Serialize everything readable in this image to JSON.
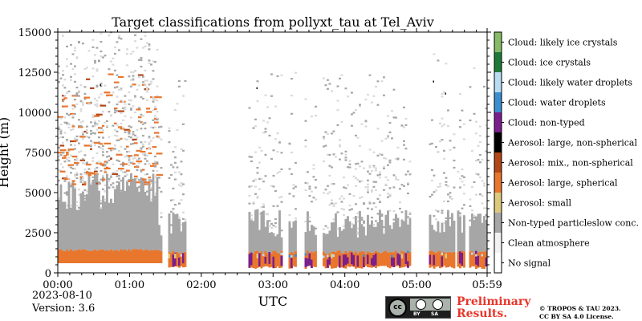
{
  "chart_data": {
    "type": "heatmap",
    "title": "Target classifications from pollyxt_tau at Tel_Aviv",
    "xlabel": "UTC",
    "ylabel": "Height (m)",
    "x_ticks": [
      "00:00",
      "01:00",
      "02:00",
      "03:00",
      "04:00",
      "05:00",
      "05:59"
    ],
    "x_range_hours": [
      0,
      5.983
    ],
    "y_ticks": [
      0,
      2500,
      5000,
      7500,
      10000,
      12500,
      15000
    ],
    "y_range": [
      0,
      15000
    ],
    "legend_position": "right (colorbar)",
    "classes": [
      {
        "label": "No signal",
        "color": "#ffffff"
      },
      {
        "label": "Clean atmosphere",
        "color": "#f2f2f2"
      },
      {
        "label": "Non-typed particleslow conc.",
        "color": "#a6a6a6"
      },
      {
        "label": "Aerosol: small",
        "color": "#ddc97d"
      },
      {
        "label": "Aerosol: large, spherical",
        "color": "#e8762d"
      },
      {
        "label": "Aerosol: mix., non-spherical",
        "color": "#b34718"
      },
      {
        "label": "Aerosol: large, non-spherical",
        "color": "#000000"
      },
      {
        "label": "Cloud: non-typed",
        "color": "#7b1f8c"
      },
      {
        "label": "Cloud: water droplets",
        "color": "#3b8fd1"
      },
      {
        "label": "Cloud: likely water droplets",
        "color": "#b8dcf2"
      },
      {
        "label": "Cloud: ice crystals",
        "color": "#1f7a3a"
      },
      {
        "label": "Cloud: likely ice crystals",
        "color": "#88bb66"
      }
    ],
    "no_data_gaps_utc": [
      [
        "01:27",
        "01:33"
      ],
      [
        "01:48",
        "02:40"
      ],
      [
        "03:08",
        "03:13"
      ],
      [
        "03:20",
        "03:26"
      ],
      [
        "03:36",
        "03:41"
      ],
      [
        "04:55",
        "05:10"
      ],
      [
        "05:32",
        "05:34"
      ],
      [
        "05:41",
        "05:44"
      ]
    ],
    "layers_summary": [
      {
        "class": "Aerosol: large, spherical",
        "height_m": [
          600,
          1400
        ],
        "time_utc": [
          "00:00",
          "05:59"
        ]
      },
      {
        "class": "Non-typed particleslow conc.",
        "height_m": [
          1400,
          6000
        ],
        "time_utc": [
          "00:00",
          "05:59"
        ]
      },
      {
        "class": "Cloud: non-typed",
        "height_m": [
          300,
          1300
        ],
        "time_utc": [
          "01:35",
          "05:59"
        ]
      },
      {
        "class": "Aerosol: large, spherical",
        "height_m": [
          6000,
          10000
        ],
        "time_utc": [
          "00:00",
          "01:25"
        ]
      }
    ]
  },
  "footer": {
    "date": "2023-08-10",
    "version": "Version: 3.6",
    "preliminary_line1": "Preliminary",
    "preliminary_line2": "Results.",
    "copyright_line1": "© TROPOS & TAU 2023.",
    "copyright_line2": "CC BY SA 4.0 License.",
    "cc_by": "BY",
    "cc_sa": "SA",
    "cc_mark": "cc"
  }
}
